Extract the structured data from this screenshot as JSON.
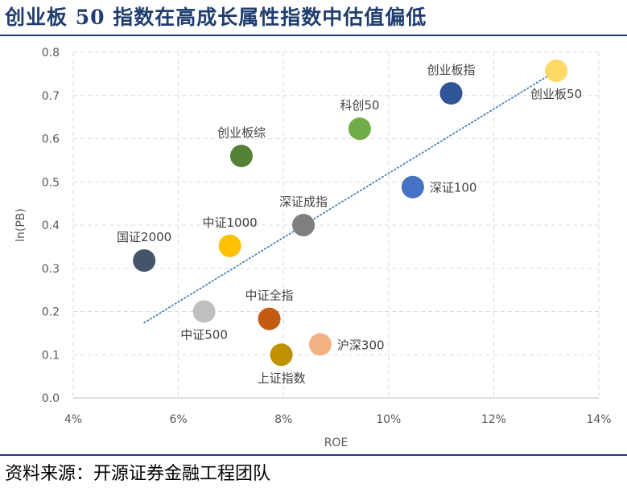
{
  "header": {
    "title": "创业板 50 指数在高成长属性指数中估值偏低",
    "source": "资料来源：开源证券金融工程团队"
  },
  "chart_data": {
    "type": "scatter",
    "title": "创业板 50 指数在高成长属性指数中估值偏低",
    "xlabel": "ROE",
    "ylabel": "ln(PB)",
    "xlim": [
      0.04,
      0.14
    ],
    "ylim": [
      0.0,
      0.8
    ],
    "x_ticks": [
      0.04,
      0.06,
      0.08,
      0.1,
      0.12,
      0.14
    ],
    "x_tick_labels": [
      "4%",
      "6%",
      "8%",
      "10%",
      "12%",
      "14%"
    ],
    "y_ticks": [
      0.0,
      0.1,
      0.2,
      0.3,
      0.4,
      0.5,
      0.6,
      0.7,
      0.8
    ],
    "y_tick_labels": [
      "0.0",
      "0.1",
      "0.2",
      "0.3",
      "0.4",
      "0.5",
      "0.6",
      "0.7",
      "0.8"
    ],
    "grid": "dashed",
    "points": [
      {
        "name": "国证2000",
        "x": 0.0535,
        "y": 0.318,
        "color": "#44546a",
        "label_pos": "above",
        "label_color": "#404040"
      },
      {
        "name": "中证1000",
        "x": 0.0698,
        "y": 0.352,
        "color": "#ffc000",
        "label_pos": "above",
        "label_color": "#404040"
      },
      {
        "name": "中证500",
        "x": 0.0649,
        "y": 0.2,
        "color": "#bfbfbf",
        "label_pos": "below",
        "label_color": "#404040"
      },
      {
        "name": "创业板综",
        "x": 0.072,
        "y": 0.56,
        "color": "#548235",
        "label_pos": "above",
        "label_color": "#404040"
      },
      {
        "name": "中证全指",
        "x": 0.0773,
        "y": 0.183,
        "color": "#c55a11",
        "label_pos": "above",
        "label_color": "#404040"
      },
      {
        "name": "上证指数",
        "x": 0.0796,
        "y": 0.1,
        "color": "#bf9000",
        "label_pos": "below",
        "label_color": "#404040"
      },
      {
        "name": "深证成指",
        "x": 0.0838,
        "y": 0.4,
        "color": "#7f7f7f",
        "label_pos": "above",
        "label_color": "#404040"
      },
      {
        "name": "沪深300",
        "x": 0.087,
        "y": 0.124,
        "color": "#f4b183",
        "label_pos": "right",
        "label_color": "#404040"
      },
      {
        "name": "科创50",
        "x": 0.0945,
        "y": 0.623,
        "color": "#70ad47",
        "label_pos": "above",
        "label_color": "#404040"
      },
      {
        "name": "深证100",
        "x": 0.1046,
        "y": 0.488,
        "color": "#4472c4",
        "label_pos": "right",
        "label_color": "#404040"
      },
      {
        "name": "创业板指",
        "x": 0.1119,
        "y": 0.705,
        "color": "#2f5597",
        "label_pos": "above",
        "label_color": "#404040"
      },
      {
        "name": "创业板50",
        "x": 0.1319,
        "y": 0.757,
        "color": "#ffd966",
        "label_pos": "below",
        "label_color": "#c00000"
      }
    ],
    "trendline": {
      "x": [
        0.0535,
        0.1319
      ],
      "y": [
        0.174,
        0.757
      ],
      "style": "dotted",
      "color": "#2e75b6"
    }
  }
}
